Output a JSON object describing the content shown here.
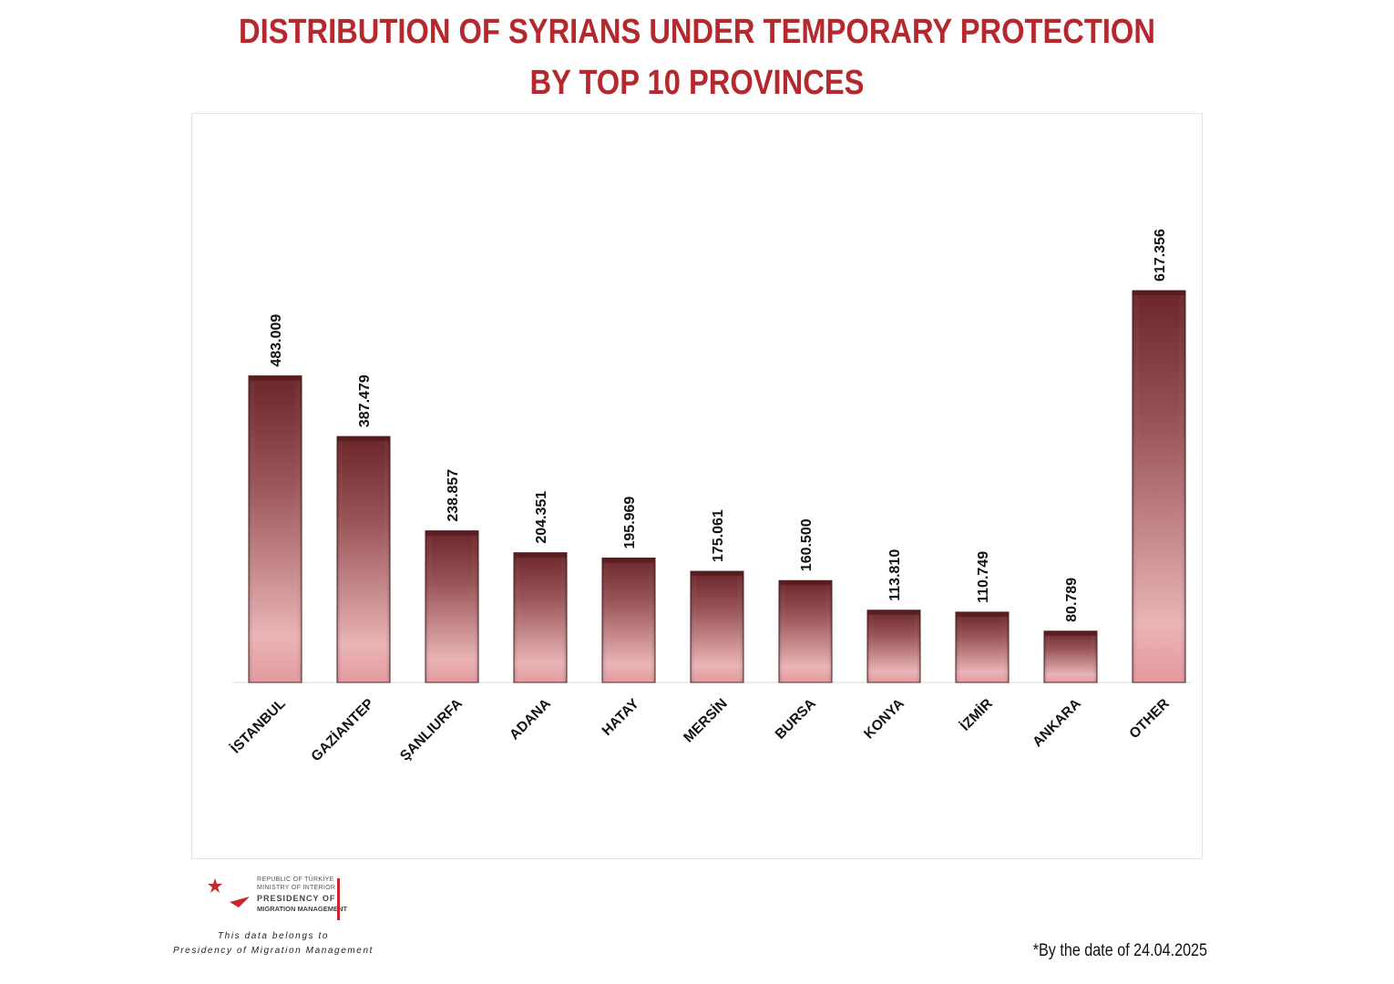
{
  "header": {
    "title_line1": "DISTRIBUTION OF SYRIANS UNDER TEMPORARY PROTECTION",
    "title_line2": "BY TOP 10 PROVINCES"
  },
  "chart_data": {
    "type": "bar",
    "title": "DISTRIBUTION OF SYRIANS UNDER TEMPORARY PROTECTION BY TOP 10 PROVINCES",
    "categories": [
      "İSTANBUL",
      "GAZİANTEP",
      "ŞANLIURFA",
      "ADANA",
      "HATAY",
      "MERSİN",
      "BURSA",
      "KONYA",
      "İZMİR",
      "ANKARA",
      "OTHER"
    ],
    "values": [
      483009,
      387479,
      238857,
      204351,
      195969,
      175061,
      160500,
      113810,
      110749,
      80789,
      617356
    ],
    "value_labels": [
      "483.009",
      "387.479",
      "238.857",
      "204.351",
      "195.969",
      "175.061",
      "160.500",
      "113.810",
      "110.749",
      "80.789",
      "617.356"
    ],
    "xlabel": "",
    "ylabel": "",
    "ylim": [
      0,
      700000
    ],
    "grid": false,
    "legend": "none",
    "colors": {
      "bar_top": "#6e2a2d",
      "bar_bottom": "#f0b8bb",
      "bar_edge": "#5a1f22"
    }
  },
  "logo": {
    "line1": "REPUBLIC OF TÜRKİYE",
    "line2": "MINISTRY OF INTERIOR",
    "line3": "PRESIDENCY OF",
    "line4": "MIGRATION MANAGEMENT"
  },
  "footer": {
    "credit_line1": "This data belongs to",
    "credit_line2": "Presidency of Migration Management",
    "date_note": "*By the date of 24.04.2025"
  },
  "colors": {
    "title": "#b5282e",
    "accent_red": "#c8262d"
  }
}
